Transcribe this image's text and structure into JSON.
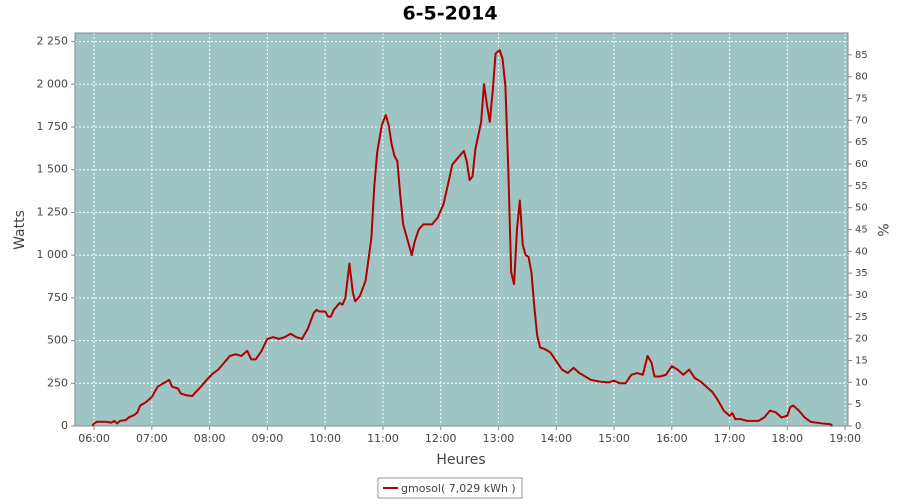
{
  "chart_data": {
    "type": "line",
    "title": "6-5-2014",
    "x_label": "Heures",
    "y_label": "Watts",
    "y2_label": "%",
    "grid": true,
    "xlim": [
      5.67,
      19.05
    ],
    "xticks": [
      {
        "value": 6,
        "label": "06:00"
      },
      {
        "value": 7,
        "label": "07:00"
      },
      {
        "value": 8,
        "label": "08:00"
      },
      {
        "value": 9,
        "label": "09:00"
      },
      {
        "value": 10,
        "label": "10:00"
      },
      {
        "value": 11,
        "label": "11:00"
      },
      {
        "value": 12,
        "label": "12:00"
      },
      {
        "value": 13,
        "label": "13:00"
      },
      {
        "value": 14,
        "label": "14:00"
      },
      {
        "value": 15,
        "label": "15:00"
      },
      {
        "value": 16,
        "label": "16:00"
      },
      {
        "value": 17,
        "label": "17:00"
      },
      {
        "value": 18,
        "label": "18:00"
      },
      {
        "value": 19,
        "label": "19:00"
      }
    ],
    "ylim": [
      0,
      2300
    ],
    "yticks": [
      0,
      250,
      500,
      750,
      {
        "value": 1000,
        "label": "1 000"
      },
      {
        "value": 1250,
        "label": "1 250"
      },
      {
        "value": 1500,
        "label": "1 500"
      },
      {
        "value": 1750,
        "label": "1 750"
      },
      {
        "value": 2000,
        "label": "2 000"
      },
      {
        "value": 2250,
        "label": "2 250"
      }
    ],
    "y2lim": [
      0,
      90
    ],
    "y2ticks": [
      0,
      5,
      10,
      15,
      20,
      25,
      30,
      35,
      40,
      45,
      50,
      55,
      60,
      65,
      70,
      75,
      80,
      85
    ],
    "x": [
      5.97,
      6.0,
      6.05,
      6.2,
      6.3,
      6.35,
      6.4,
      6.45,
      6.55,
      6.6,
      6.7,
      6.75,
      6.8,
      6.9,
      7.0,
      7.1,
      7.2,
      7.3,
      7.35,
      7.45,
      7.5,
      7.6,
      7.7,
      7.75,
      7.85,
      7.95,
      8.05,
      8.15,
      8.25,
      8.35,
      8.45,
      8.55,
      8.65,
      8.72,
      8.8,
      8.9,
      9.0,
      9.1,
      9.2,
      9.3,
      9.4,
      9.5,
      9.6,
      9.7,
      9.8,
      9.85,
      9.9,
      10.0,
      10.05,
      10.1,
      10.15,
      10.25,
      10.3,
      10.35,
      10.42,
      10.48,
      10.52,
      10.6,
      10.7,
      10.8,
      10.85,
      10.9,
      10.98,
      11.05,
      11.1,
      11.15,
      11.2,
      11.25,
      11.3,
      11.35,
      11.45,
      11.5,
      11.55,
      11.62,
      11.7,
      11.85,
      11.95,
      12.05,
      12.15,
      12.2,
      12.3,
      12.4,
      12.45,
      12.5,
      12.55,
      12.6,
      12.7,
      12.75,
      12.8,
      12.85,
      12.9,
      12.95,
      13.02,
      13.07,
      13.12,
      13.17,
      13.22,
      13.27,
      13.32,
      13.37,
      13.42,
      13.47,
      13.52,
      13.57,
      13.62,
      13.67,
      13.72,
      13.8,
      13.9,
      14.0,
      14.1,
      14.2,
      14.3,
      14.4,
      14.5,
      14.6,
      14.75,
      14.9,
      15.0,
      15.1,
      15.2,
      15.3,
      15.4,
      15.5,
      15.58,
      15.65,
      15.7,
      15.8,
      15.9,
      16.0,
      16.1,
      16.2,
      16.3,
      16.4,
      16.5,
      16.6,
      16.7,
      16.8,
      16.9,
      17.0,
      17.05,
      17.1,
      17.2,
      17.3,
      17.5,
      17.6,
      17.7,
      17.8,
      17.9,
      18.0,
      18.05,
      18.1,
      18.2,
      18.3,
      18.4,
      18.6,
      18.75,
      18.78
    ],
    "series": [
      {
        "name": "gmosol( 7,029 kWh )",
        "color": "#b00000",
        "values": [
          0,
          15,
          25,
          25,
          20,
          30,
          15,
          30,
          35,
          50,
          65,
          80,
          120,
          140,
          170,
          230,
          250,
          270,
          230,
          220,
          190,
          180,
          175,
          195,
          230,
          270,
          305,
          330,
          370,
          410,
          420,
          410,
          440,
          390,
          390,
          440,
          510,
          520,
          510,
          520,
          540,
          520,
          510,
          570,
          660,
          680,
          670,
          670,
          640,
          640,
          680,
          720,
          710,
          750,
          950,
          780,
          730,
          760,
          850,
          1100,
          1400,
          1600,
          1760,
          1820,
          1760,
          1650,
          1580,
          1550,
          1350,
          1180,
          1060,
          1000,
          1080,
          1150,
          1180,
          1180,
          1220,
          1300,
          1450,
          1530,
          1570,
          1610,
          1550,
          1440,
          1460,
          1620,
          1780,
          2000,
          1880,
          1780,
          1960,
          2180,
          2200,
          2150,
          1990,
          1500,
          900,
          830,
          1150,
          1320,
          1060,
          1000,
          990,
          900,
          700,
          530,
          460,
          450,
          430,
          380,
          330,
          310,
          340,
          310,
          290,
          270,
          260,
          255,
          265,
          250,
          250,
          300,
          310,
          300,
          410,
          370,
          290,
          290,
          300,
          350,
          330,
          300,
          330,
          280,
          260,
          230,
          200,
          150,
          90,
          60,
          75,
          40,
          40,
          30,
          30,
          50,
          90,
          80,
          50,
          60,
          110,
          120,
          90,
          50,
          25,
          15,
          10,
          0
        ]
      }
    ]
  }
}
